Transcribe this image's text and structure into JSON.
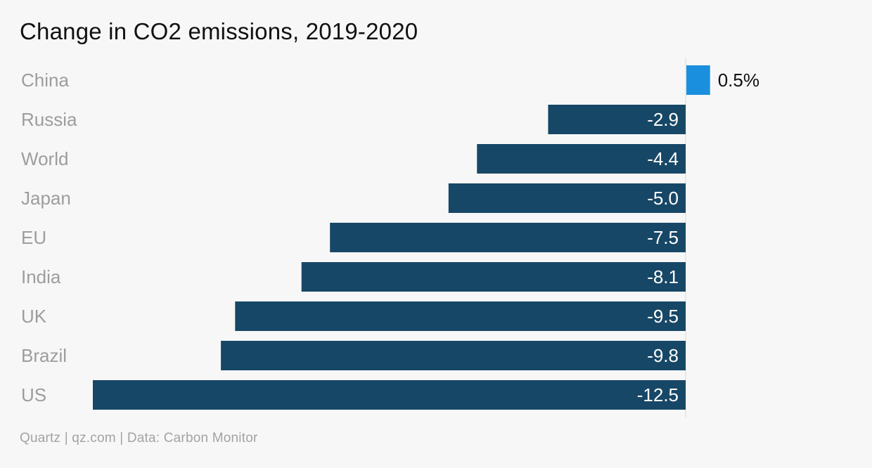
{
  "title": "Change in CO2 emissions, 2019-2020",
  "footer": "Quartz | qz.com | Data: Carbon Monitor",
  "colors": {
    "positive": "#1a8fdd",
    "negative": "#174766",
    "zero_line": "#d8d8d8",
    "category_text": "#9d9d9d"
  },
  "chart_data": {
    "type": "bar",
    "orientation": "horizontal",
    "title": "Change in CO2 emissions, 2019-2020",
    "categories": [
      "China",
      "Russia",
      "World",
      "Japan",
      "EU",
      "India",
      "UK",
      "Brazil",
      "US"
    ],
    "values": [
      0.5,
      -2.9,
      -4.4,
      -5.0,
      -7.5,
      -8.1,
      -9.5,
      -9.8,
      -12.5
    ],
    "value_labels": [
      "0.5%",
      "-2.9",
      "-4.4",
      "-5.0",
      "-7.5",
      "-8.1",
      "-9.5",
      "-9.8",
      "-12.5"
    ],
    "xlim": [
      -12.5,
      0.5
    ],
    "grid": false,
    "legend": "none"
  }
}
